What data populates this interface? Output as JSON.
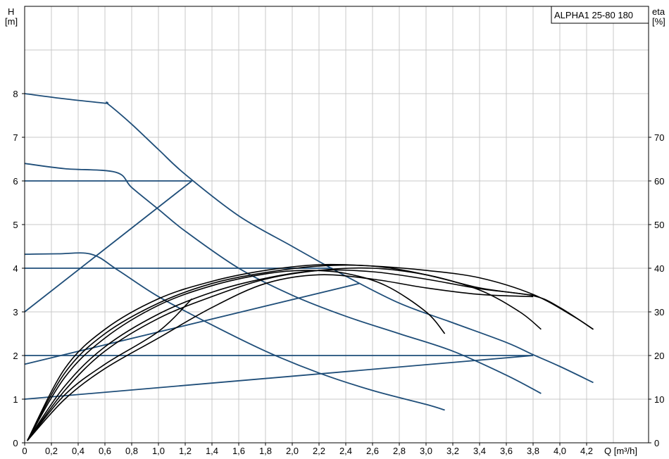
{
  "chart_data": {
    "type": "line",
    "title": "ALPHA1 25-80 180",
    "left_axis": {
      "label_top": "H",
      "label_unit": "[m]",
      "ylim": [
        0,
        10
      ],
      "ticks": [
        0,
        1,
        2,
        3,
        4,
        5,
        6,
        7,
        8
      ]
    },
    "right_axis": {
      "label_top": "eta",
      "label_unit": "[%]",
      "ylim": [
        0,
        100
      ],
      "ticks": [
        0,
        10,
        20,
        30,
        40,
        50,
        60,
        70
      ]
    },
    "x_axis": {
      "label": "Q [m³/h]",
      "xlim": [
        0,
        4.6
      ],
      "ticks": [
        "0",
        "0,2",
        "0,4",
        "0,6",
        "0,8",
        "1,0",
        "1,2",
        "1,4",
        "1,6",
        "1,8",
        "2,0",
        "2,2",
        "2,4",
        "2,6",
        "2,8",
        "3,0",
        "3,2",
        "3,4",
        "3,6",
        "3,8",
        "4,0",
        "4,2"
      ]
    },
    "grid": true,
    "colors": {
      "pump_curve": "#1f4e79",
      "efficiency_curve": "#000000",
      "grid": "#c8c8c8"
    },
    "pump_curves": [
      {
        "points": [
          [
            0,
            8.0
          ],
          [
            0.3,
            7.88
          ],
          [
            0.6,
            7.78
          ],
          [
            0.62,
            7.77
          ],
          [
            0.8,
            7.3
          ],
          [
            1.0,
            6.72
          ],
          [
            1.2,
            6.15
          ],
          [
            1.6,
            5.2
          ],
          [
            2.0,
            4.5
          ],
          [
            2.4,
            3.82
          ],
          [
            2.8,
            3.2
          ],
          [
            3.2,
            2.75
          ],
          [
            3.6,
            2.3
          ],
          [
            3.8,
            2.02
          ],
          [
            4.0,
            1.75
          ],
          [
            4.25,
            1.38
          ]
        ]
      },
      {
        "points": [
          [
            0,
            6.4
          ],
          [
            0.3,
            6.28
          ],
          [
            0.68,
            6.2
          ],
          [
            0.8,
            5.85
          ],
          [
            1.0,
            5.35
          ],
          [
            1.2,
            4.85
          ],
          [
            1.6,
            4.0
          ],
          [
            2.0,
            3.38
          ],
          [
            2.4,
            2.9
          ],
          [
            2.8,
            2.5
          ],
          [
            3.2,
            2.1
          ],
          [
            3.6,
            1.55
          ],
          [
            3.86,
            1.13
          ]
        ]
      },
      {
        "points": [
          [
            0,
            4.32
          ],
          [
            0.25,
            4.33
          ],
          [
            0.5,
            4.32
          ],
          [
            0.7,
            3.95
          ],
          [
            1.0,
            3.35
          ],
          [
            1.4,
            2.7
          ],
          [
            1.8,
            2.1
          ],
          [
            2.2,
            1.6
          ],
          [
            2.6,
            1.2
          ],
          [
            3.0,
            0.88
          ],
          [
            3.14,
            0.75
          ]
        ]
      },
      {
        "points": [
          [
            0,
            6.0
          ],
          [
            1.25,
            6.0
          ],
          [
            0,
            3.0
          ]
        ]
      },
      {
        "points": [
          [
            0,
            4.0
          ],
          [
            2.3,
            4.0
          ]
        ]
      },
      {
        "points": [
          [
            0,
            1.8
          ],
          [
            2.5,
            3.65
          ]
        ]
      },
      {
        "points": [
          [
            0,
            2.0
          ],
          [
            3.8,
            2.0
          ],
          [
            0,
            1.0
          ]
        ]
      }
    ],
    "efficiency_curves": [
      {
        "points": [
          [
            0.02,
            0.5
          ],
          [
            0.3,
            17
          ],
          [
            0.6,
            26
          ],
          [
            1.0,
            33
          ],
          [
            1.4,
            37
          ],
          [
            1.8,
            39.5
          ],
          [
            2.2,
            40.8
          ],
          [
            2.6,
            40.5
          ],
          [
            3.0,
            39.5
          ],
          [
            3.4,
            37.8
          ],
          [
            3.8,
            34
          ],
          [
            4.1,
            29
          ],
          [
            4.25,
            26
          ]
        ]
      },
      {
        "points": [
          [
            0.02,
            0.5
          ],
          [
            0.3,
            16
          ],
          [
            0.6,
            25
          ],
          [
            1.0,
            32
          ],
          [
            1.4,
            36.5
          ],
          [
            1.8,
            39
          ],
          [
            2.2,
            40.5
          ],
          [
            2.6,
            40.5
          ],
          [
            3.0,
            38.5
          ],
          [
            3.4,
            35
          ],
          [
            3.7,
            30
          ],
          [
            3.86,
            26
          ]
        ]
      },
      {
        "points": [
          [
            0.02,
            0.5
          ],
          [
            0.3,
            15
          ],
          [
            0.6,
            24
          ],
          [
            1.0,
            31.5
          ],
          [
            1.4,
            36
          ],
          [
            1.8,
            38.7
          ],
          [
            2.1,
            39.5
          ],
          [
            2.4,
            38.8
          ],
          [
            2.7,
            36
          ],
          [
            3.0,
            30
          ],
          [
            3.14,
            25
          ]
        ]
      },
      {
        "points": [
          [
            0.02,
            0.5
          ],
          [
            0.3,
            13
          ],
          [
            0.6,
            22
          ],
          [
            1.0,
            29.5
          ],
          [
            1.4,
            34.5
          ],
          [
            1.8,
            37.7
          ],
          [
            2.2,
            39.5
          ],
          [
            2.6,
            39.2
          ],
          [
            3.0,
            37.5
          ],
          [
            3.4,
            35.3
          ],
          [
            3.8,
            33.7
          ],
          [
            4.0,
            31
          ],
          [
            4.25,
            26
          ]
        ]
      },
      {
        "points": [
          [
            0.02,
            0.5
          ],
          [
            0.3,
            12
          ],
          [
            0.6,
            21
          ],
          [
            1.0,
            28.5
          ],
          [
            1.4,
            33.5
          ],
          [
            1.8,
            37.5
          ],
          [
            2.2,
            39.5
          ],
          [
            2.6,
            40
          ],
          [
            3.0,
            38.5
          ],
          [
            3.4,
            35.5
          ],
          [
            3.8,
            33.8
          ]
        ]
      },
      {
        "points": [
          [
            0.02,
            0.5
          ],
          [
            0.3,
            11
          ],
          [
            0.6,
            18
          ],
          [
            1.0,
            25.5
          ],
          [
            1.25,
            33.0
          ]
        ]
      },
      {
        "points": [
          [
            0.02,
            0.5
          ],
          [
            0.3,
            10
          ],
          [
            0.6,
            17
          ],
          [
            1.0,
            24
          ],
          [
            1.4,
            31
          ],
          [
            1.8,
            36.5
          ],
          [
            2.2,
            38.5
          ],
          [
            2.6,
            37.5
          ],
          [
            3.0,
            35.5
          ],
          [
            3.4,
            34
          ],
          [
            3.8,
            33.5
          ]
        ]
      }
    ]
  }
}
